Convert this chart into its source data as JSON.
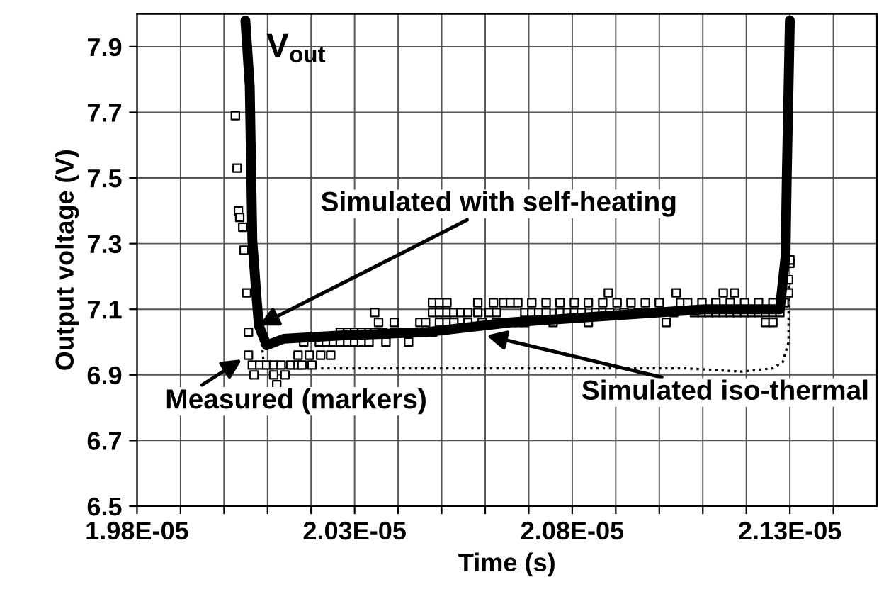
{
  "chart_data": {
    "type": "line",
    "xlabel": "Time (s)",
    "ylabel": "Output voltage (V)",
    "xlim": [
      1.98e-05,
      2.15e-05
    ],
    "ylim": [
      6.5,
      8.0
    ],
    "xticks": [
      {
        "value": 1.98e-05,
        "label": "1.98E-05"
      },
      {
        "value": 1.99e-05,
        "label": null
      },
      {
        "value": 2e-05,
        "label": null
      },
      {
        "value": 2.01e-05,
        "label": null
      },
      {
        "value": 2.02e-05,
        "label": null
      },
      {
        "value": 2.03e-05,
        "label": "2.03E-05"
      },
      {
        "value": 2.04e-05,
        "label": null
      },
      {
        "value": 2.05e-05,
        "label": null
      },
      {
        "value": 2.06e-05,
        "label": null
      },
      {
        "value": 2.07e-05,
        "label": null
      },
      {
        "value": 2.08e-05,
        "label": "2.08E-05"
      },
      {
        "value": 2.09e-05,
        "label": null
      },
      {
        "value": 2.1e-05,
        "label": null
      },
      {
        "value": 2.11e-05,
        "label": null
      },
      {
        "value": 2.12e-05,
        "label": null
      },
      {
        "value": 2.13e-05,
        "label": "2.13E-05"
      },
      {
        "value": 2.14e-05,
        "label": null
      }
    ],
    "yticks": [
      6.5,
      6.7,
      6.9,
      7.1,
      7.3,
      7.5,
      7.7,
      7.9
    ],
    "grid": true,
    "series": [
      {
        "type": "scatter",
        "marker": "square",
        "color": "#000000",
        "x": [
          2.0026e-05,
          2.003e-05,
          2.0033e-05,
          2.0036e-05,
          2.0043e-05,
          2.0046e-05,
          2.0052e-05,
          2.0056e-05,
          2.0056e-05,
          2.0065e-05,
          2.0082e-05,
          2.0098e-05,
          2.0114e-05,
          2.0131e-05,
          2.0153e-05,
          2.017e-05,
          2.0179e-05,
          2.0202e-05,
          2.0069e-05,
          2.0114e-05,
          2.014e-05,
          2.0121e-05,
          2.017e-05,
          2.0196e-05,
          2.0222e-05,
          2.0245e-05,
          2.0183e-05,
          2.0219e-05,
          2.0235e-05,
          2.0251e-05,
          2.0267e-05,
          2.0284e-05,
          2.03e-05,
          2.0316e-05,
          2.0333e-05,
          2.0372e-05,
          2.0424e-05,
          2.0267e-05,
          2.0284e-05,
          2.03e-05,
          2.0316e-05,
          2.0333e-05,
          2.0346e-05,
          2.0365e-05,
          2.0391e-05,
          2.0414e-05,
          2.043e-05,
          2.0463e-05,
          2.0479e-05,
          2.0355e-05,
          2.0391e-05,
          2.045e-05,
          2.0463e-05,
          2.0495e-05,
          2.0512e-05,
          2.0528e-05,
          2.056e-05,
          2.0593e-05,
          2.0626e-05,
          2.0642e-05,
          2.0675e-05,
          2.0691e-05,
          2.0756e-05,
          2.0837e-05,
          2.1016e-05,
          2.1244e-05,
          2.1261e-05,
          2.0346e-05,
          2.0479e-05,
          2.0495e-05,
          2.0512e-05,
          2.0528e-05,
          2.0544e-05,
          2.056e-05,
          2.0583e-05,
          2.0609e-05,
          2.0626e-05,
          2.0691e-05,
          2.0707e-05,
          2.0723e-05,
          2.074e-05,
          2.0772e-05,
          2.0789e-05,
          2.0805e-05,
          2.0821e-05,
          2.0854e-05,
          2.087e-05,
          2.0886e-05,
          2.0919e-05,
          2.0951e-05,
          2.1033e-05,
          2.1081e-05,
          2.1098e-05,
          2.1114e-05,
          2.113e-05,
          2.1147e-05,
          2.1163e-05,
          2.1179e-05,
          2.1196e-05,
          2.1212e-05,
          2.1228e-05,
          2.1244e-05,
          2.1261e-05,
          2.1277e-05,
          2.0479e-05,
          2.0495e-05,
          2.0512e-05,
          2.0583e-05,
          2.0619e-05,
          2.0642e-05,
          2.0658e-05,
          2.0675e-05,
          2.0707e-05,
          2.074e-05,
          2.0772e-05,
          2.0805e-05,
          2.0837e-05,
          2.087e-05,
          2.0903e-05,
          2.0935e-05,
          2.0968e-05,
          2.1e-05,
          2.1049e-05,
          2.1065e-05,
          2.1098e-05,
          2.113e-05,
          2.1163e-05,
          2.1196e-05,
          2.1228e-05,
          2.1261e-05,
          2.1287e-05,
          2.0883e-05,
          2.1039e-05,
          2.1147e-05,
          2.1173e-05,
          2.1297e-05,
          2.1297e-05,
          2.13e-05,
          2.13e-05
        ],
        "values": [
          7.69,
          7.53,
          7.4,
          7.38,
          7.35,
          7.28,
          7.15,
          7.03,
          6.96,
          6.93,
          6.93,
          6.93,
          6.93,
          6.93,
          6.93,
          6.93,
          6.93,
          6.93,
          6.9,
          6.9,
          6.9,
          6.87,
          6.96,
          6.96,
          6.96,
          6.96,
          7.0,
          7.0,
          7.0,
          7.0,
          7.0,
          7.0,
          7.0,
          7.0,
          7.0,
          7.0,
          7.0,
          7.03,
          7.03,
          7.03,
          7.03,
          7.03,
          7.03,
          7.03,
          7.03,
          7.03,
          7.03,
          7.03,
          7.03,
          7.06,
          7.06,
          7.06,
          7.06,
          7.06,
          7.06,
          7.06,
          7.06,
          7.06,
          7.06,
          7.06,
          7.06,
          7.06,
          7.06,
          7.06,
          7.06,
          7.06,
          7.06,
          7.09,
          7.09,
          7.09,
          7.09,
          7.09,
          7.09,
          7.09,
          7.09,
          7.09,
          7.09,
          7.09,
          7.09,
          7.09,
          7.09,
          7.09,
          7.09,
          7.09,
          7.09,
          7.09,
          7.09,
          7.09,
          7.09,
          7.09,
          7.09,
          7.09,
          7.09,
          7.09,
          7.09,
          7.09,
          7.09,
          7.09,
          7.09,
          7.09,
          7.09,
          7.09,
          7.09,
          7.09,
          7.12,
          7.12,
          7.12,
          7.12,
          7.12,
          7.12,
          7.12,
          7.12,
          7.12,
          7.12,
          7.12,
          7.12,
          7.12,
          7.12,
          7.12,
          7.12,
          7.12,
          7.12,
          7.12,
          7.12,
          7.12,
          7.12,
          7.12,
          7.12,
          7.12,
          7.12,
          7.12,
          7.15,
          7.15,
          7.15,
          7.15,
          7.15,
          7.19,
          7.24,
          7.25
        ]
      },
      {
        "line_style": "dotted",
        "color": "#000000",
        "x": [
          2.0078e-05,
          2.0088e-05,
          2.0092e-05,
          2.1059e-05,
          2.1189e-05,
          2.1261e-05,
          2.1284e-05,
          2.1297e-05,
          2.1297e-05
        ],
        "values": [
          7.05,
          6.98,
          6.92,
          6.92,
          6.91,
          6.92,
          6.94,
          7.0,
          7.2
        ]
      },
      {
        "line_style": "solid",
        "color": "#000000",
        "x": [
          2.0049e-05,
          2.0059e-05,
          2.0065e-05,
          2.0075e-05,
          2.008e-05,
          2.0098e-05,
          2.0137e-05,
          2.0267e-05,
          2.0463e-05,
          2.0658e-05,
          2.1105e-05,
          2.1277e-05,
          2.129e-05,
          2.1293e-05,
          2.13e-05
        ],
        "values": [
          7.98,
          7.78,
          7.31,
          7.13,
          7.05,
          6.99,
          7.01,
          7.02,
          7.03,
          7.06,
          7.1,
          7.1,
          7.26,
          7.51,
          7.98
        ]
      }
    ],
    "annotations": [
      {
        "text": "V$_{out}$",
        "x": 2.0049e-05,
        "y": 7.98
      },
      {
        "text": "Simulated with self-heating",
        "x": 2.008e-05,
        "y": 7.05
      },
      {
        "text": "Measured (markers)",
        "x": 2.0056e-05,
        "y": 6.96
      },
      {
        "text": "Simulated iso-thermal",
        "x": 2.0603e-05,
        "y": 7.02
      }
    ]
  }
}
